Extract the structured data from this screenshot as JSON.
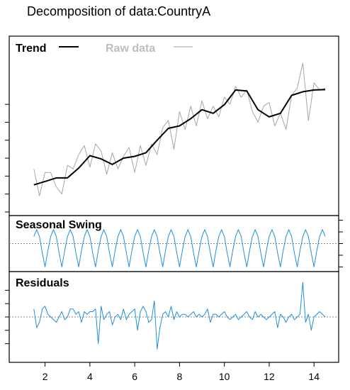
{
  "chart_data": {
    "type": "line",
    "title": "Decomposition of data:CountryA",
    "xlabel": "",
    "ylabel": "",
    "x_ticks": [
      2,
      4,
      6,
      8,
      10,
      12,
      14
    ],
    "xlim": [
      0.4,
      15.1
    ],
    "grid": false,
    "legend": {
      "placement": "top-left",
      "entries": [
        "Trend",
        "Raw data"
      ]
    },
    "colors": {
      "trend": "#000000",
      "raw": "#a6a6a6",
      "component": "#1f8fd6",
      "zero_line": "#888888",
      "frame": "#000000"
    },
    "panels": [
      {
        "label": "Trend",
        "ylim": [
          0,
          100
        ],
        "y_ticks": [
          2,
          12,
          22,
          32,
          42,
          52,
          62
        ],
        "series": [
          {
            "name": "Trend",
            "x": [
              1.5,
              2.0,
              2.5,
              3.0,
              3.5,
              4.0,
              4.5,
              5.0,
              5.5,
              6.0,
              6.5,
              7.0,
              7.5,
              8.0,
              8.5,
              9.0,
              9.5,
              10.0,
              10.5,
              11.0,
              11.5,
              12.0,
              12.5,
              13.0,
              13.5,
              14.0,
              14.5
            ],
            "values": [
              17.1,
              19.0,
              21.0,
              21.0,
              26.5,
              33.4,
              31.6,
              28.5,
              32.0,
              33.0,
              35.0,
              42.0,
              48.6,
              50.0,
              54.0,
              59.0,
              57.0,
              61.8,
              70.0,
              69.5,
              59.0,
              55.0,
              57.0,
              67.0,
              69.0,
              70.0,
              70.2
            ]
          },
          {
            "name": "Raw data",
            "x": [
              1.5,
              1.75,
              2.0,
              2.25,
              2.5,
              2.75,
              3.0,
              3.25,
              3.5,
              3.75,
              4.0,
              4.25,
              4.5,
              4.75,
              5.0,
              5.25,
              5.5,
              5.75,
              6.0,
              6.25,
              6.5,
              6.75,
              7.0,
              7.25,
              7.5,
              7.75,
              8.0,
              8.25,
              8.5,
              8.75,
              9.0,
              9.25,
              9.5,
              9.75,
              10.0,
              10.25,
              10.5,
              10.75,
              11.0,
              11.25,
              11.5,
              11.75,
              12.0,
              12.25,
              12.5,
              12.75,
              13.0,
              13.25,
              13.5,
              13.75,
              14.0,
              14.25,
              14.5
            ],
            "values": [
              26,
              11,
              24,
              24,
              16,
              12,
              28,
              26,
              34,
              39,
              27,
              40,
              36,
              23,
              35,
              26,
              33,
              38,
              24,
              39,
              28,
              40,
              34,
              49,
              53,
              37,
              58,
              48,
              61,
              50,
              64,
              54,
              61,
              55,
              66,
              62,
              72,
              66,
              70,
              58,
              52,
              61,
              63,
              50,
              57,
              48,
              67,
              71,
              85,
              53,
              74,
              70,
              71
            ]
          }
        ]
      },
      {
        "label": "Seasonal Swing",
        "ylim": [
          -12,
          12
        ],
        "y_ticks": [
          -10,
          -5,
          0,
          5,
          10
        ],
        "series": [
          {
            "name": "",
            "x": [
              1.5,
              1.625,
              1.75,
              1.875,
              2.0,
              2.125,
              2.25,
              2.375,
              2.5,
              2.625,
              2.75,
              2.875,
              3.0,
              3.125,
              3.25,
              3.375,
              3.5,
              3.625,
              3.75,
              3.875,
              4.0,
              4.125,
              4.25,
              4.375,
              4.5,
              4.625,
              4.75,
              4.875,
              5.0,
              5.125,
              5.25,
              5.375,
              5.5,
              5.625,
              5.75,
              5.875,
              6.0,
              6.125,
              6.25,
              6.375,
              6.5,
              6.625,
              6.75,
              6.875,
              7.0,
              7.125,
              7.25,
              7.375,
              7.5,
              7.625,
              7.75,
              7.875,
              8.0,
              8.125,
              8.25,
              8.375,
              8.5,
              8.625,
              8.75,
              8.875,
              9.0,
              9.125,
              9.25,
              9.375,
              9.5,
              9.625,
              9.75,
              9.875,
              10.0,
              10.125,
              10.25,
              10.375,
              10.5,
              10.625,
              10.75,
              10.875,
              11.0,
              11.125,
              11.25,
              11.375,
              11.5,
              11.625,
              11.75,
              11.875,
              12.0,
              12.125,
              12.25,
              12.375,
              12.5,
              12.625,
              12.75,
              12.875,
              13.0,
              13.125,
              13.25,
              13.375,
              13.5,
              13.625,
              13.75,
              13.875,
              14.0,
              14.125,
              14.25,
              14.375,
              14.5
            ],
            "values": [
              3,
              6,
              3,
              -4,
              -10,
              -3,
              3,
              6,
              3,
              -4,
              -10,
              -3,
              3,
              6,
              3,
              -4,
              -10,
              -3,
              3,
              6,
              3,
              -4,
              -10,
              -3,
              3,
              6,
              3,
              -4,
              -10,
              -3,
              3,
              6,
              3,
              -4,
              -10,
              -3,
              3,
              6,
              3,
              -4,
              -10,
              -3,
              3,
              6,
              3,
              -4,
              -10,
              -3,
              3,
              6,
              3,
              -4,
              -10,
              -3,
              3,
              6,
              3,
              -4,
              -10,
              -3,
              3,
              6,
              3,
              -4,
              -10,
              -3,
              3,
              6,
              3,
              -4,
              -10,
              -3,
              3,
              6,
              3,
              -4,
              -10,
              -3,
              3,
              6,
              3,
              -4,
              -10,
              -3,
              3,
              6,
              3,
              -4,
              -10,
              -3,
              3,
              6,
              3,
              -4,
              -10,
              -3,
              3,
              6,
              3,
              -4,
              -10,
              -3,
              3,
              6,
              3
            ]
          }
        ]
      },
      {
        "label": "Residuals",
        "ylim": [
          -17,
          17
        ],
        "y_ticks": [
          -10,
          -5,
          0,
          5,
          10
        ],
        "series": [
          {
            "name": "",
            "x": [
              1.5,
              1.625,
              1.75,
              1.875,
              2.0,
              2.125,
              2.25,
              2.375,
              2.5,
              2.625,
              2.75,
              2.875,
              3.0,
              3.125,
              3.25,
              3.375,
              3.5,
              3.625,
              3.75,
              3.875,
              4.0,
              4.125,
              4.25,
              4.375,
              4.5,
              4.625,
              4.75,
              4.875,
              5.0,
              5.125,
              5.25,
              5.375,
              5.5,
              5.625,
              5.75,
              5.875,
              6.0,
              6.125,
              6.25,
              6.375,
              6.5,
              6.625,
              6.75,
              6.875,
              7.0,
              7.125,
              7.25,
              7.375,
              7.5,
              7.625,
              7.75,
              7.875,
              8.0,
              8.125,
              8.25,
              8.375,
              8.5,
              8.625,
              8.75,
              8.875,
              9.0,
              9.125,
              9.25,
              9.375,
              9.5,
              9.625,
              9.75,
              9.875,
              10.0,
              10.125,
              10.25,
              10.375,
              10.5,
              10.625,
              10.75,
              10.875,
              11.0,
              11.125,
              11.25,
              11.375,
              11.5,
              11.625,
              11.75,
              11.875,
              12.0,
              12.125,
              12.25,
              12.375,
              12.5,
              12.625,
              12.75,
              12.875,
              13.0,
              13.125,
              13.25,
              13.375,
              13.5,
              13.625,
              13.75,
              13.875,
              14.0,
              14.125,
              14.25,
              14.375,
              14.5
            ],
            "values": [
              3,
              -4,
              -2,
              3,
              4,
              1,
              0,
              -1,
              -2,
              0,
              2,
              -1,
              0,
              3,
              3,
              1,
              2,
              -2,
              2,
              1,
              2,
              2,
              3,
              -10,
              4,
              -1,
              1,
              2,
              -3,
              0,
              1,
              -1,
              3,
              -1,
              1,
              2,
              3,
              -5,
              2,
              4,
              2,
              -2,
              -1,
              6,
              -12,
              -4,
              1,
              2,
              0,
              4,
              -1,
              2,
              0,
              1,
              1,
              0,
              1,
              2,
              0,
              1,
              0,
              1,
              3,
              -2,
              1,
              1,
              0,
              1,
              2,
              0,
              -1,
              0,
              1,
              -1,
              0,
              1,
              2,
              0,
              -1,
              2,
              0,
              1,
              0,
              -1,
              0,
              1,
              2,
              -4,
              1,
              0,
              -2,
              0,
              1,
              -1,
              0,
              1,
              13,
              -2,
              1,
              -5,
              0,
              1,
              2,
              1,
              0
            ]
          }
        ]
      }
    ]
  }
}
